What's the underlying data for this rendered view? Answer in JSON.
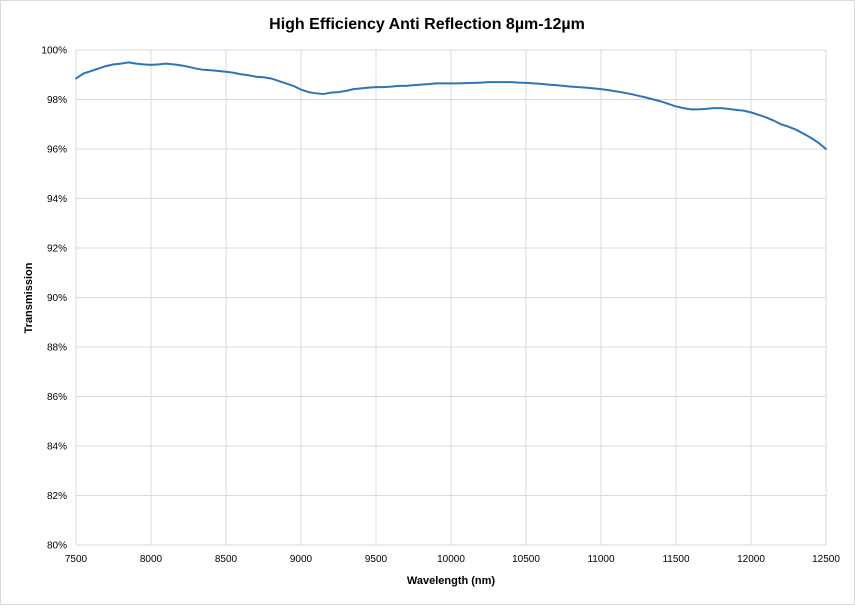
{
  "chart_data": {
    "type": "line",
    "title": "High Efficiency Anti Reflection 8µm-12µm",
    "xlabel": "Wavelength (nm)",
    "ylabel": "Transmission",
    "xlim": [
      7500,
      12500
    ],
    "ylim": [
      80,
      100
    ],
    "x_ticks": [
      7500,
      8000,
      8500,
      9000,
      9500,
      10000,
      10500,
      11000,
      11500,
      12000,
      12500
    ],
    "y_ticks": [
      80,
      82,
      84,
      86,
      88,
      90,
      92,
      94,
      96,
      98,
      100
    ],
    "y_tick_labels": [
      "80%",
      "82%",
      "84%",
      "86%",
      "88%",
      "90%",
      "92%",
      "94%",
      "96%",
      "98%",
      "100%"
    ],
    "grid": true,
    "legend": "none",
    "series": [
      {
        "color": "#2e75b6",
        "x": [
          7500,
          7550,
          7600,
          7650,
          7700,
          7750,
          7800,
          7850,
          7900,
          7950,
          8000,
          8050,
          8100,
          8150,
          8200,
          8250,
          8300,
          8350,
          8400,
          8450,
          8500,
          8550,
          8600,
          8650,
          8700,
          8750,
          8800,
          8850,
          8900,
          8950,
          9000,
          9050,
          9100,
          9150,
          9200,
          9250,
          9300,
          9350,
          9400,
          9450,
          9500,
          9550,
          9600,
          9650,
          9700,
          9750,
          9800,
          9850,
          9900,
          9950,
          10000,
          10050,
          10100,
          10150,
          10200,
          10250,
          10300,
          10350,
          10400,
          10450,
          10500,
          10550,
          10600,
          10650,
          10700,
          10750,
          10800,
          10850,
          10900,
          10950,
          11000,
          11050,
          11100,
          11150,
          11200,
          11250,
          11300,
          11350,
          11400,
          11450,
          11500,
          11550,
          11600,
          11650,
          11700,
          11750,
          11800,
          11850,
          11900,
          11950,
          12000,
          12050,
          12100,
          12150,
          12200,
          12250,
          12300,
          12350,
          12400,
          12450,
          12500
        ],
        "y": [
          98.85,
          99.05,
          99.15,
          99.25,
          99.35,
          99.42,
          99.45,
          99.5,
          99.45,
          99.42,
          99.4,
          99.42,
          99.45,
          99.42,
          99.38,
          99.32,
          99.25,
          99.2,
          99.18,
          99.15,
          99.12,
          99.08,
          99.02,
          98.98,
          98.92,
          98.9,
          98.85,
          98.75,
          98.65,
          98.55,
          98.4,
          98.3,
          98.25,
          98.22,
          98.28,
          98.3,
          98.35,
          98.42,
          98.45,
          98.48,
          98.5,
          98.5,
          98.52,
          98.55,
          98.55,
          98.58,
          98.6,
          98.62,
          98.65,
          98.65,
          98.65,
          98.65,
          98.66,
          98.67,
          98.68,
          98.7,
          98.7,
          98.7,
          98.7,
          98.68,
          98.67,
          98.65,
          98.63,
          98.6,
          98.58,
          98.55,
          98.52,
          98.5,
          98.48,
          98.45,
          98.42,
          98.38,
          98.33,
          98.28,
          98.22,
          98.15,
          98.08,
          98.0,
          97.92,
          97.82,
          97.72,
          97.65,
          97.6,
          97.6,
          97.62,
          97.65,
          97.65,
          97.62,
          97.58,
          97.55,
          97.48,
          97.38,
          97.28,
          97.15,
          97.0,
          96.9,
          96.78,
          96.62,
          96.45,
          96.25,
          96.0
        ]
      }
    ]
  }
}
